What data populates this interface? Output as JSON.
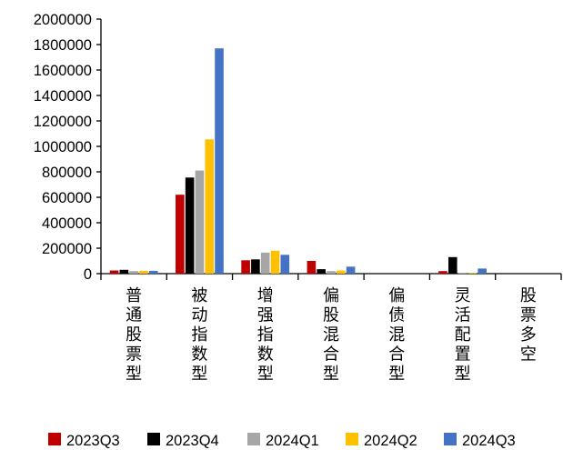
{
  "chart_data": {
    "type": "bar",
    "title": "",
    "xlabel": "",
    "ylabel": "",
    "ylim": [
      0,
      2000000
    ],
    "yticks": [
      0,
      200000,
      400000,
      600000,
      800000,
      1000000,
      1200000,
      1400000,
      1600000,
      1800000,
      2000000
    ],
    "grid": false,
    "legend_position": "bottom",
    "categories": [
      "普通股票型",
      "被动指数型",
      "增强指数型",
      "偏股混合型",
      "偏债混合型",
      "灵活配置型",
      "股票多空"
    ],
    "series": [
      {
        "name": "2023Q3",
        "color": "#C00000",
        "values": [
          25000,
          620000,
          105000,
          100000,
          0,
          20000,
          0
        ]
      },
      {
        "name": "2023Q4",
        "color": "#000000",
        "values": [
          30000,
          755000,
          112000,
          35000,
          0,
          130000,
          0
        ]
      },
      {
        "name": "2024Q1",
        "color": "#A6A6A6",
        "values": [
          20000,
          810000,
          165000,
          20000,
          0,
          5000,
          0
        ]
      },
      {
        "name": "2024Q2",
        "color": "#FFC000",
        "values": [
          22000,
          1055000,
          180000,
          25000,
          0,
          5000,
          0
        ]
      },
      {
        "name": "2024Q3",
        "color": "#4472C4",
        "values": [
          22000,
          1770000,
          148000,
          55000,
          0,
          40000,
          0
        ]
      }
    ]
  }
}
